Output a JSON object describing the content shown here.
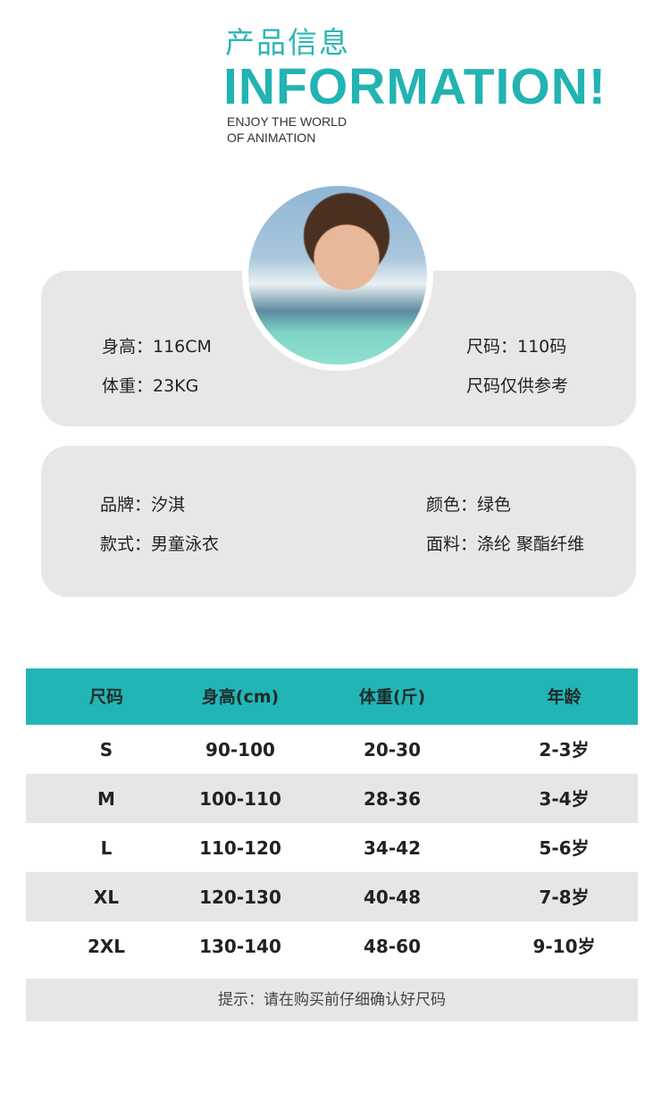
{
  "header": {
    "cn_title": "产品信息",
    "en_title": "INFORMATION!",
    "subtitle_line1": "ENJOY THE WORLD",
    "subtitle_line2": "OF ANIMATION"
  },
  "model": {
    "height": "身高：116CM",
    "weight": "体重：23KG",
    "size": "尺码：110码",
    "note": "尺码仅供参考"
  },
  "product": {
    "brand": "品牌：汐淇",
    "style": "款式：男童泳衣",
    "color": "颜色：绿色",
    "fabric": "面料：涤纶  聚酯纤维"
  },
  "size_table": {
    "headers": [
      "尺码",
      "身高(cm)",
      "体重(斤)",
      "年龄"
    ],
    "rows": [
      [
        "S",
        "90-100",
        "20-30",
        "2-3岁"
      ],
      [
        "M",
        "100-110",
        "28-36",
        "3-4岁"
      ],
      [
        "L",
        "110-120",
        "34-42",
        "5-6岁"
      ],
      [
        "XL",
        "120-130",
        "40-48",
        "7-8岁"
      ],
      [
        "2XL",
        "130-140",
        "48-60",
        "9-10岁"
      ]
    ],
    "tip": "提示：请在购买前仔细确认好尺码"
  },
  "colors": {
    "accent": "#22b5b5",
    "card": "#e7e7e7"
  }
}
